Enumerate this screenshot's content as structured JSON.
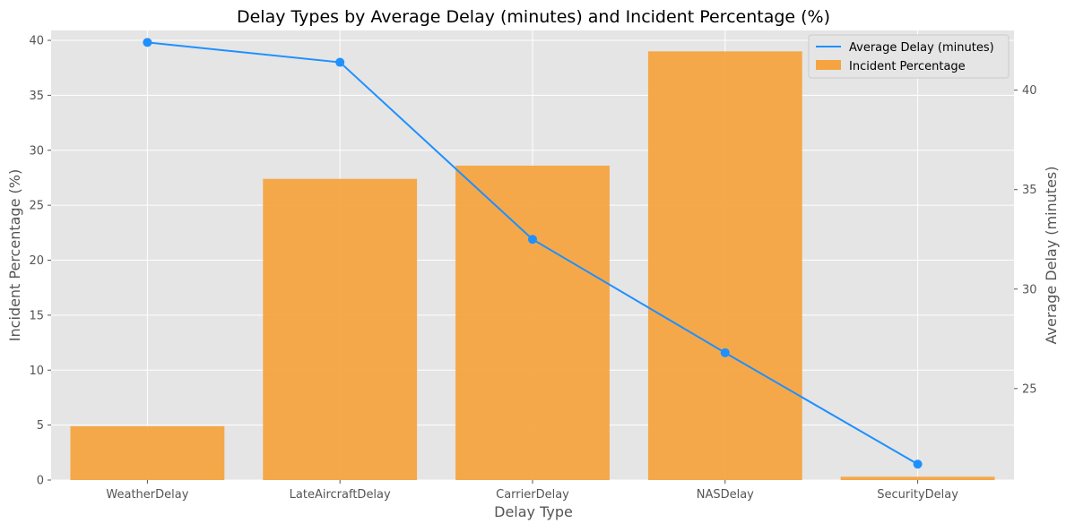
{
  "chart_data": {
    "type": "bar",
    "title": "Delay Types by Average Delay (minutes) and Incident Percentage (%)",
    "xlabel": "Delay Type",
    "ylabel": "Incident Percentage (%)",
    "y2label": "Average Delay (minutes)",
    "categories": [
      "WeatherDelay",
      "LateAircraftDelay",
      "CarrierDelay",
      "NASDelay",
      "SecurityDelay"
    ],
    "series": [
      {
        "name": "Incident Percentage",
        "type": "bar",
        "axis": "left",
        "color": "#f5a441",
        "values": [
          4.9,
          27.4,
          28.6,
          39.0,
          0.3
        ]
      },
      {
        "name": "Average Delay (minutes)",
        "type": "line",
        "axis": "right",
        "color": "#1e90ff",
        "values": [
          42.4,
          41.4,
          32.5,
          26.8,
          21.2
        ]
      }
    ],
    "ylim": [
      0,
      40.9
    ],
    "y2lim": [
      20.4,
      43.0
    ],
    "yticks": [
      0,
      5,
      10,
      15,
      20,
      25,
      30,
      35,
      40
    ],
    "y2ticks": [
      25,
      30,
      35,
      40
    ],
    "grid": true,
    "legend_position": "top-right",
    "background": "#e5e5e5"
  }
}
